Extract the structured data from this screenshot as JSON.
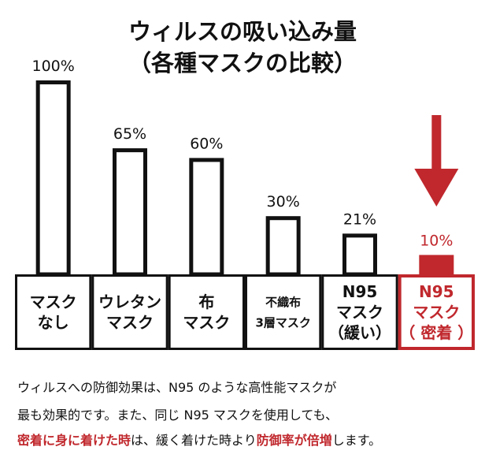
{
  "title": {
    "line1": "ウィルスの吸い込み量",
    "line2": "（各種マスクの比較）"
  },
  "colors": {
    "text": "#111111",
    "bar_outline": "#111111",
    "highlight": "#c0282d",
    "background": "#ffffff"
  },
  "chart_data": {
    "type": "bar",
    "title": "ウィルスの吸い込み量（各種マスクの比較）",
    "unit": "%",
    "ylim": [
      0,
      100
    ],
    "grid": false,
    "legend": "none",
    "categories": [
      [
        "マスク",
        "なし"
      ],
      [
        "ウレタン",
        "マスク"
      ],
      [
        "布",
        "マスク"
      ],
      [
        "不織布",
        "3層マスク"
      ],
      [
        "N95",
        "マスク",
        "（緩い）"
      ],
      [
        "N95",
        "マスク",
        "（ 密着 ）"
      ]
    ],
    "values": [
      100,
      65,
      60,
      30,
      21,
      10
    ],
    "value_labels": [
      "100%",
      "65%",
      "60%",
      "30%",
      "21%",
      "10%"
    ],
    "highlighted_index": 5,
    "annotation": "down-arrow-over-highlighted"
  },
  "caption": {
    "line1": "ウィルスへの防御効果は、N95 のような高性能マスクが",
    "line2": "最も効果的です。また、同じ N95 マスクを使用しても、",
    "line3_part1": "密着に身に着けた時",
    "line3_part2": "は、緩く着けた時より",
    "line3_part3": "防御率が倍増",
    "line3_part4": "します。"
  }
}
